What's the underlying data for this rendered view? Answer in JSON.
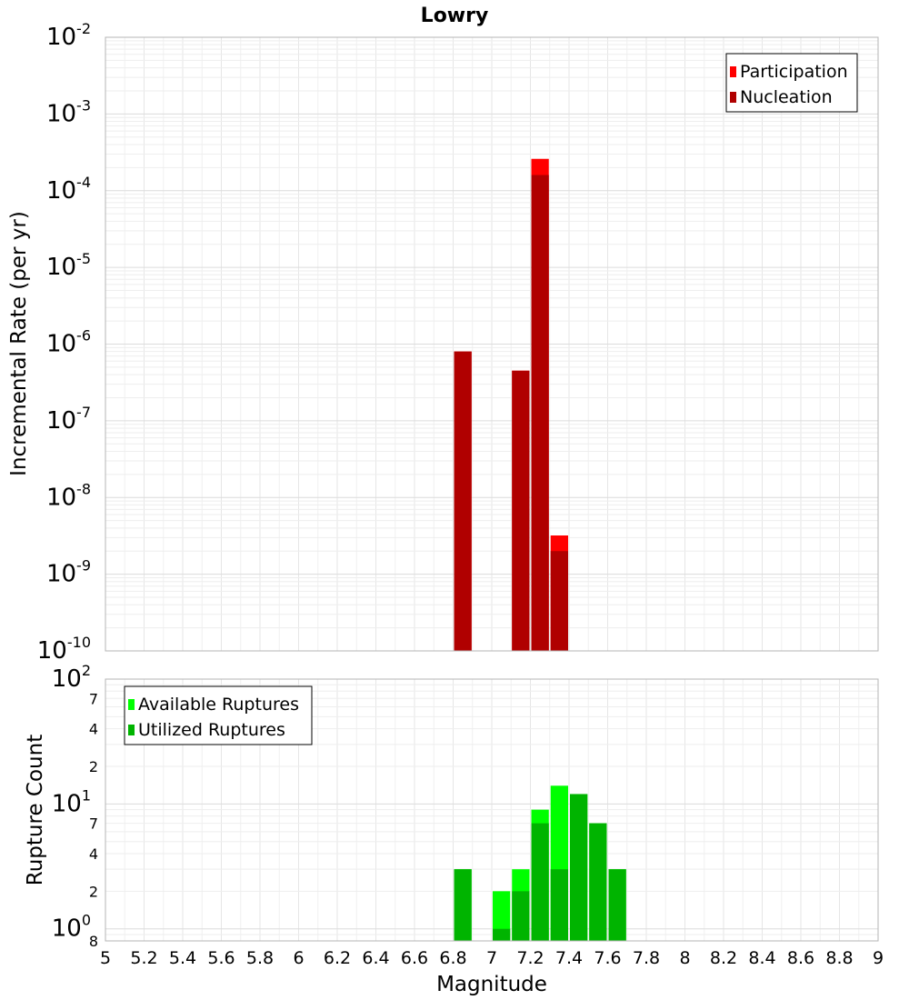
{
  "chart_data": [
    {
      "type": "bar",
      "title": "Lowry",
      "ylabel": "Incremental Rate (per yr)",
      "xlabel": "",
      "yscale": "log",
      "ylim": [
        1e-10,
        0.01
      ],
      "xlim": [
        5,
        9
      ],
      "bin_width": 0.1,
      "grid": true,
      "legend_position": "top-right",
      "y_ticks": [
        {
          "base": "10",
          "exp": "-10",
          "value": 1e-10
        },
        {
          "base": "10",
          "exp": "-9",
          "value": 1e-09
        },
        {
          "base": "10",
          "exp": "-8",
          "value": 1e-08
        },
        {
          "base": "10",
          "exp": "-7",
          "value": 1e-07
        },
        {
          "base": "10",
          "exp": "-6",
          "value": 1e-06
        },
        {
          "base": "10",
          "exp": "-5",
          "value": 1e-05
        },
        {
          "base": "10",
          "exp": "-4",
          "value": 0.0001
        },
        {
          "base": "10",
          "exp": "-3",
          "value": 0.001
        },
        {
          "base": "10",
          "exp": "-2",
          "value": 0.01
        }
      ],
      "series": [
        {
          "name": "Participation",
          "color": "#ff0000",
          "points": [
            [
              6.85,
              8e-07
            ],
            [
              7.15,
              4.5e-07
            ],
            [
              7.25,
              0.00026
            ],
            [
              7.35,
              3.2e-09
            ]
          ]
        },
        {
          "name": "Nucleation",
          "color": "#b00000",
          "points": [
            [
              6.85,
              8e-07
            ],
            [
              7.15,
              4.5e-07
            ],
            [
              7.25,
              0.00016
            ],
            [
              7.35,
              2e-09
            ]
          ]
        }
      ]
    },
    {
      "type": "bar",
      "title": "",
      "ylabel": "Rupture Count",
      "xlabel": "Magnitude",
      "yscale": "log",
      "ylim": [
        0.8,
        100
      ],
      "xlim": [
        5,
        9
      ],
      "bin_width": 0.1,
      "grid": true,
      "legend_position": "top-left",
      "y_ticks": [
        {
          "base": "10",
          "exp": "2",
          "value": 100
        },
        {
          "base": "7",
          "exp": "",
          "value": 70
        },
        {
          "base": "4",
          "exp": "",
          "value": 40
        },
        {
          "base": "2",
          "exp": "",
          "value": 20
        },
        {
          "base": "10",
          "exp": "1",
          "value": 10
        },
        {
          "base": "7",
          "exp": "",
          "value": 7
        },
        {
          "base": "4",
          "exp": "",
          "value": 4
        },
        {
          "base": "2",
          "exp": "",
          "value": 2
        },
        {
          "base": "10",
          "exp": "0",
          "value": 1
        },
        {
          "base": "8",
          "exp": "",
          "value": 0.8
        }
      ],
      "x_ticks": [
        "5",
        "5.2",
        "5.4",
        "5.6",
        "5.8",
        "6",
        "6.2",
        "6.4",
        "6.6",
        "6.8",
        "7",
        "7.2",
        "7.4",
        "7.6",
        "7.8",
        "8",
        "8.2",
        "8.4",
        "8.6",
        "8.8",
        "9"
      ],
      "series": [
        {
          "name": "Available Ruptures",
          "color": "#00ff00",
          "points": [
            [
              6.85,
              3
            ],
            [
              7.05,
              2
            ],
            [
              7.15,
              3
            ],
            [
              7.25,
              9
            ],
            [
              7.35,
              14
            ],
            [
              7.45,
              12
            ],
            [
              7.55,
              7
            ],
            [
              7.65,
              3
            ]
          ]
        },
        {
          "name": "Utilized Ruptures",
          "color": "#00b400",
          "points": [
            [
              6.85,
              3
            ],
            [
              7.05,
              1
            ],
            [
              7.15,
              2
            ],
            [
              7.25,
              7
            ],
            [
              7.35,
              3
            ],
            [
              7.45,
              12
            ],
            [
              7.55,
              7
            ],
            [
              7.65,
              3
            ]
          ]
        }
      ]
    }
  ]
}
